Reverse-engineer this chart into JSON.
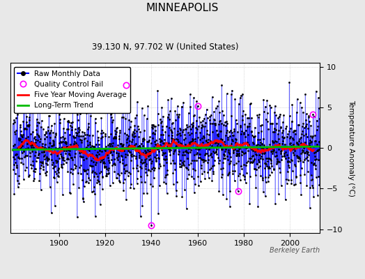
{
  "title": "MINNEAPOLIS",
  "subtitle": "39.130 N, 97.702 W (United States)",
  "ylabel": "Temperature Anomaly (°C)",
  "watermark": "Berkeley Earth",
  "year_start": 1880,
  "year_end": 2012,
  "ylim": [
    -10.5,
    10.5
  ],
  "yticks": [
    -10,
    -5,
    0,
    5,
    10
  ],
  "xticks": [
    1900,
    1920,
    1940,
    1960,
    1980,
    2000
  ],
  "raw_color": "#0000ff",
  "raw_lw": 0.6,
  "marker_color": "#000000",
  "marker_size": 2.0,
  "qc_color": "#ff00ff",
  "qc_size": 6,
  "moving_avg_color": "#ff0000",
  "moving_avg_lw": 1.8,
  "trend_color": "#00bb00",
  "trend_lw": 2.0,
  "bg_color": "#e8e8e8",
  "plot_bg_color": "#ffffff",
  "grid_color": "#bbbbbb",
  "title_fontsize": 11,
  "subtitle_fontsize": 8.5,
  "label_fontsize": 7.5,
  "tick_fontsize": 8,
  "legend_fontsize": 7.5,
  "noise_std": 2.5,
  "trend_slope": 0.008,
  "qc_indices": [
    588,
    720,
    960,
    1170,
    1560
  ],
  "qc_values": [
    7.8,
    -9.5,
    5.2,
    -5.3,
    4.2
  ]
}
